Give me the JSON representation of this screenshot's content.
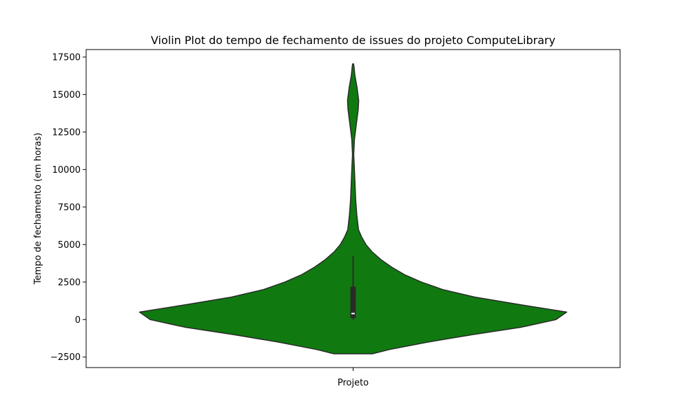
{
  "chart_data": {
    "type": "violin",
    "title": "Violin Plot do tempo de fechamento de issues do projeto ComputeLibrary",
    "xlabel": "",
    "ylabel": "Tempo de fechamento (em horas)",
    "categories": [
      "Projeto"
    ],
    "ylim": [
      -3200,
      18000
    ],
    "yticks": [
      -2500,
      0,
      2500,
      5000,
      7500,
      10000,
      12500,
      15000,
      17500
    ],
    "ytick_labels": [
      "−2500",
      "0",
      "2500",
      "5000",
      "7500",
      "10000",
      "12500",
      "15000",
      "17500"
    ],
    "violin_color": "#107a10",
    "edge_color": "#2a2a2a",
    "density_profile": [
      {
        "y": -2280,
        "w": 0.09
      },
      {
        "y": -2000,
        "w": 0.17
      },
      {
        "y": -1500,
        "w": 0.35
      },
      {
        "y": -1000,
        "w": 0.56
      },
      {
        "y": -500,
        "w": 0.79
      },
      {
        "y": 0,
        "w": 0.95
      },
      {
        "y": 500,
        "w": 1.0
      },
      {
        "y": 1000,
        "w": 0.78
      },
      {
        "y": 1500,
        "w": 0.57
      },
      {
        "y": 2000,
        "w": 0.42
      },
      {
        "y": 2500,
        "w": 0.32
      },
      {
        "y": 3000,
        "w": 0.24
      },
      {
        "y": 3500,
        "w": 0.18
      },
      {
        "y": 4000,
        "w": 0.13
      },
      {
        "y": 4500,
        "w": 0.09
      },
      {
        "y": 5000,
        "w": 0.06
      },
      {
        "y": 5500,
        "w": 0.04
      },
      {
        "y": 6000,
        "w": 0.025
      },
      {
        "y": 7000,
        "w": 0.017
      },
      {
        "y": 8000,
        "w": 0.012
      },
      {
        "y": 9000,
        "w": 0.009
      },
      {
        "y": 10000,
        "w": 0.006
      },
      {
        "y": 11000,
        "w": 0.003
      },
      {
        "y": 12000,
        "w": 0.006
      },
      {
        "y": 13000,
        "w": 0.015
      },
      {
        "y": 14000,
        "w": 0.024
      },
      {
        "y": 14600,
        "w": 0.026
      },
      {
        "y": 15500,
        "w": 0.018
      },
      {
        "y": 16300,
        "w": 0.008
      },
      {
        "y": 16900,
        "w": 0.004
      },
      {
        "y": 17050,
        "w": 0.002
      }
    ],
    "box": {
      "whisker_low": 0,
      "q1": 100,
      "median": 400,
      "q3": 2200,
      "whisker_high": 4250
    }
  }
}
